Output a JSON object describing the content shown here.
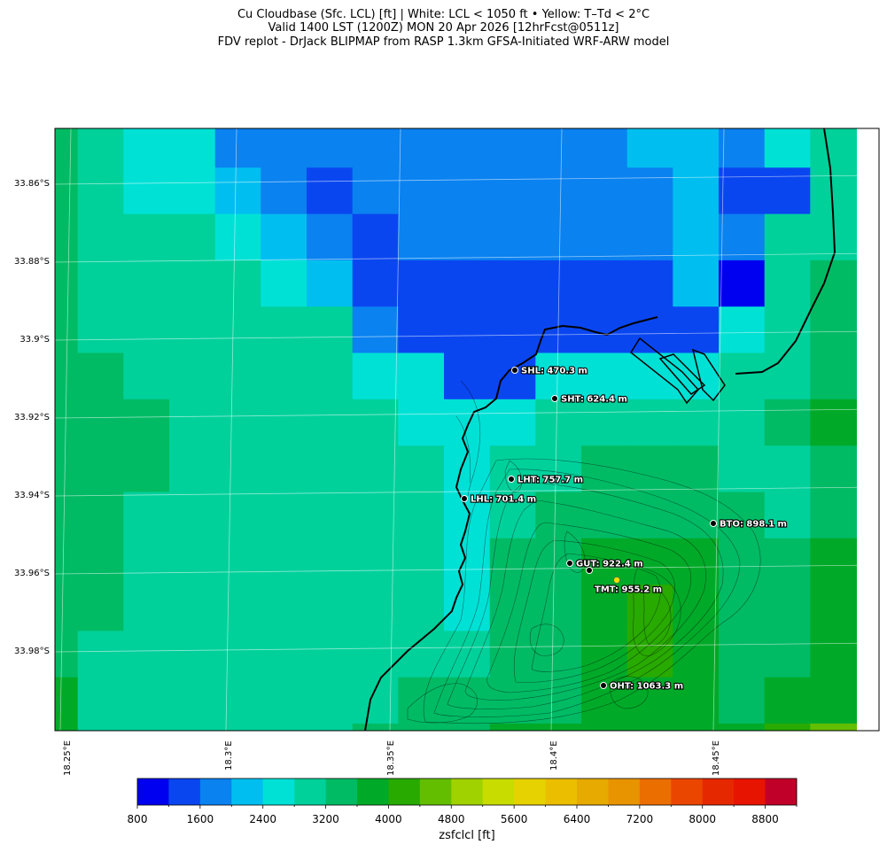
{
  "title": {
    "line1": "Cu Cloudbase (Sfc. LCL) [ft]  |  White: LCL < 1050 ft • Yellow: T–Td < 2°C",
    "line2": "Valid 1400 LST (1200Z) MON 20 Apr 2026 [12hrFcst@0511z]",
    "line3": "FDV replot - DrJack BLIPMAP from RASP 1.3km GFSA-Initiated WRF-ARW model"
  },
  "lat_labels": [
    "33.86°S",
    "33.88°S",
    "33.9°S",
    "33.92°S",
    "33.94°S",
    "33.96°S",
    "33.98°S"
  ],
  "lon_labels": [
    "18.25°E",
    "18.3°E",
    "18.35°E",
    "18.4°E",
    "18.45°E"
  ],
  "sites": [
    {
      "code": "SHL",
      "label": "SHL: 470.3 m",
      "elevation_m": 470.3
    },
    {
      "code": "SHT",
      "label": "SHT: 624.4 m",
      "elevation_m": 624.4
    },
    {
      "code": "LHT",
      "label": "LHT: 757.7 m",
      "elevation_m": 757.7
    },
    {
      "code": "LHL",
      "label": "LHL: 701.4 m",
      "elevation_m": 701.4
    },
    {
      "code": "BTO",
      "label": "BTO: 898.1 m",
      "elevation_m": 898.1
    },
    {
      "code": "GUT",
      "label": "GUT: 922.4 m",
      "elevation_m": 922.4
    },
    {
      "code": "TMT",
      "label": "TMT: 955.2 m",
      "elevation_m": 955.2
    },
    {
      "code": "OHT",
      "label": "OHT: 1063.3 m",
      "elevation_m": 1063.3
    }
  ],
  "colorbar": {
    "label": "zsfclcl [ft]",
    "min": 800,
    "max": 9200,
    "step": 400,
    "tick_labels": [
      "800",
      "1600",
      "2400",
      "3200",
      "4000",
      "4800",
      "5600",
      "6400",
      "7200",
      "8000",
      "8800"
    ],
    "colors": [
      "#0000f0",
      "#0a46f0",
      "#0a82f0",
      "#00bff0",
      "#00e1d6",
      "#00d19b",
      "#00bb64",
      "#00aa28",
      "#28aa00",
      "#64be00",
      "#a0d200",
      "#c8dc00",
      "#e6d200",
      "#ebbe00",
      "#e6aa00",
      "#e89400",
      "#eb6e00",
      "#eb4600",
      "#e62800",
      "#e61400",
      "#c00028"
    ]
  }
}
